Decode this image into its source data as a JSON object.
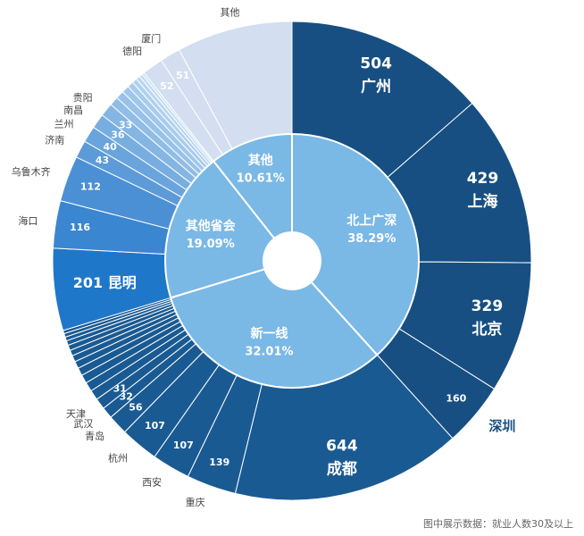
{
  "chart_data": {
    "type": "pie",
    "subtype": "sunburst-donut",
    "inner_ring": [
      {
        "name": "北上广深",
        "label": "北上广深",
        "percent_label": "38.29%",
        "value": 38.29,
        "color": "#7ab8e6"
      },
      {
        "name": "新一线",
        "label": "新一线",
        "percent_label": "32.01%",
        "value": 32.01,
        "color": "#7ab8e6"
      },
      {
        "name": "其他省会",
        "label": "其他省会",
        "percent_label": "19.09%",
        "value": 19.09,
        "color": "#7ab8e6"
      },
      {
        "name": "其他",
        "label": "其他",
        "percent_label": "10.61%",
        "value": 10.61,
        "color": "#7ab8e6"
      }
    ],
    "outer_ring": [
      {
        "group": "北上广深",
        "segments": [
          {
            "city": "广州",
            "value": 504,
            "show_value": true,
            "show_city": true,
            "label_pos": "inside",
            "color": "#174f82"
          },
          {
            "city": "上海",
            "value": 429,
            "show_value": true,
            "show_city": true,
            "label_pos": "inside",
            "color": "#174f82"
          },
          {
            "city": "北京",
            "value": 329,
            "show_value": true,
            "show_city": true,
            "label_pos": "inside",
            "color": "#174f82"
          },
          {
            "city": "深圳",
            "value": 160,
            "show_value": true,
            "show_city": true,
            "label_pos": "split",
            "color": "#174f82"
          }
        ]
      },
      {
        "group": "新一线",
        "segments": [
          {
            "city": "成都",
            "value": 644,
            "show_value": true,
            "show_city": true,
            "label_pos": "inside",
            "color": "#1a5a92"
          },
          {
            "city": "重庆",
            "value": 139,
            "show_value": true,
            "show_city": true,
            "label_pos": "split",
            "color": "#1a5a92"
          },
          {
            "city": "西安",
            "value": 107,
            "show_value": true,
            "show_city": true,
            "label_pos": "split",
            "color": "#1a5a92"
          },
          {
            "city": "杭州",
            "value": 107,
            "show_value": true,
            "show_city": true,
            "label_pos": "split",
            "color": "#1a5a92"
          },
          {
            "city": "青岛",
            "value": 56,
            "show_value": true,
            "show_city": true,
            "label_pos": "split",
            "color": "#1a5a92"
          },
          {
            "city": "武汉",
            "value": 32,
            "show_value": true,
            "show_city": true,
            "label_pos": "split",
            "color": "#1a5a92"
          },
          {
            "city": "天津",
            "value": 31,
            "show_value": true,
            "show_city": true,
            "label_pos": "split",
            "color": "#1a5a92"
          },
          {
            "city": "",
            "value": 28,
            "show_value": false,
            "show_city": false,
            "color": "#1a5a92"
          },
          {
            "city": "",
            "value": 26,
            "show_value": false,
            "show_city": false,
            "color": "#1a5a92"
          },
          {
            "city": "",
            "value": 24,
            "show_value": false,
            "show_city": false,
            "color": "#1a5a92"
          },
          {
            "city": "",
            "value": 22,
            "show_value": false,
            "show_city": false,
            "color": "#1a5a92"
          },
          {
            "city": "",
            "value": 20,
            "show_value": false,
            "show_city": false,
            "color": "#1a5a92"
          },
          {
            "city": "",
            "value": 18,
            "show_value": false,
            "show_city": false,
            "color": "#1a5a92"
          },
          {
            "city": "",
            "value": 16,
            "show_value": false,
            "show_city": false,
            "color": "#1a5a92"
          },
          {
            "city": "",
            "value": 15,
            "show_value": false,
            "show_city": false,
            "color": "#1a5a92"
          },
          {
            "city": "",
            "value": 13,
            "show_value": false,
            "show_city": false,
            "color": "#1a5a92"
          },
          {
            "city": "",
            "value": 11,
            "show_value": false,
            "show_city": false,
            "color": "#1a5a92"
          },
          {
            "city": "",
            "value": 10,
            "show_value": false,
            "show_city": false,
            "color": "#1a5a92"
          },
          {
            "city": "",
            "value": 9,
            "show_value": false,
            "show_city": false,
            "color": "#1a5a92"
          }
        ]
      },
      {
        "group": "其他省会",
        "segments": [
          {
            "city": "昆明",
            "value": 201,
            "show_value": true,
            "show_city": true,
            "label_pos": "inside-inline",
            "color": "#1f77c9"
          },
          {
            "city": "海口",
            "value": 116,
            "show_value": true,
            "show_city": true,
            "label_pos": "split",
            "color": "#3a86d0"
          },
          {
            "city": "乌鲁木齐",
            "value": 112,
            "show_value": true,
            "show_city": true,
            "label_pos": "split",
            "color": "#4b90d4"
          },
          {
            "city": "济南",
            "value": 43,
            "show_value": true,
            "show_city": true,
            "label_pos": "split",
            "color": "#5d9bd8"
          },
          {
            "city": "兰州",
            "value": 40,
            "show_value": true,
            "show_city": true,
            "label_pos": "split",
            "color": "#6aa4dc"
          },
          {
            "city": "南昌",
            "value": 36,
            "show_value": true,
            "show_city": true,
            "label_pos": "split",
            "color": "#78ade0"
          },
          {
            "city": "贵阳",
            "value": 33,
            "show_value": true,
            "show_city": true,
            "label_pos": "split",
            "color": "#85b6e3"
          },
          {
            "city": "",
            "value": 22,
            "show_value": false,
            "show_city": false,
            "color": "#90bde6"
          },
          {
            "city": "",
            "value": 20,
            "show_value": false,
            "show_city": false,
            "color": "#98c2e8"
          },
          {
            "city": "",
            "value": 18,
            "show_value": false,
            "show_city": false,
            "color": "#a0c7ea"
          },
          {
            "city": "",
            "value": 15,
            "show_value": false,
            "show_city": false,
            "color": "#a8ccec"
          },
          {
            "city": "",
            "value": 12,
            "show_value": false,
            "show_city": false,
            "color": "#b0d1ee"
          },
          {
            "city": "",
            "value": 10,
            "show_value": false,
            "show_city": false,
            "color": "#b8d6f0"
          },
          {
            "city": "",
            "value": 8,
            "show_value": false,
            "show_city": false,
            "color": "#c0dbf2"
          },
          {
            "city": "",
            "value": 6,
            "show_value": false,
            "show_city": false,
            "color": "#c8e0f4"
          }
        ]
      },
      {
        "group": "其他",
        "segments": [
          {
            "city": "德阳",
            "value": 52,
            "show_value": true,
            "show_city": true,
            "label_pos": "split",
            "color": "#d3def0"
          },
          {
            "city": "厦门",
            "value": 51,
            "show_value": true,
            "show_city": true,
            "label_pos": "split",
            "color": "#d3def0"
          },
          {
            "city": "其他",
            "value": 288,
            "show_value": false,
            "show_city": true,
            "label_pos": "outside",
            "color": "#d3def0"
          }
        ]
      }
    ],
    "footnote": "图中展示数据：就业人数30及以上"
  }
}
